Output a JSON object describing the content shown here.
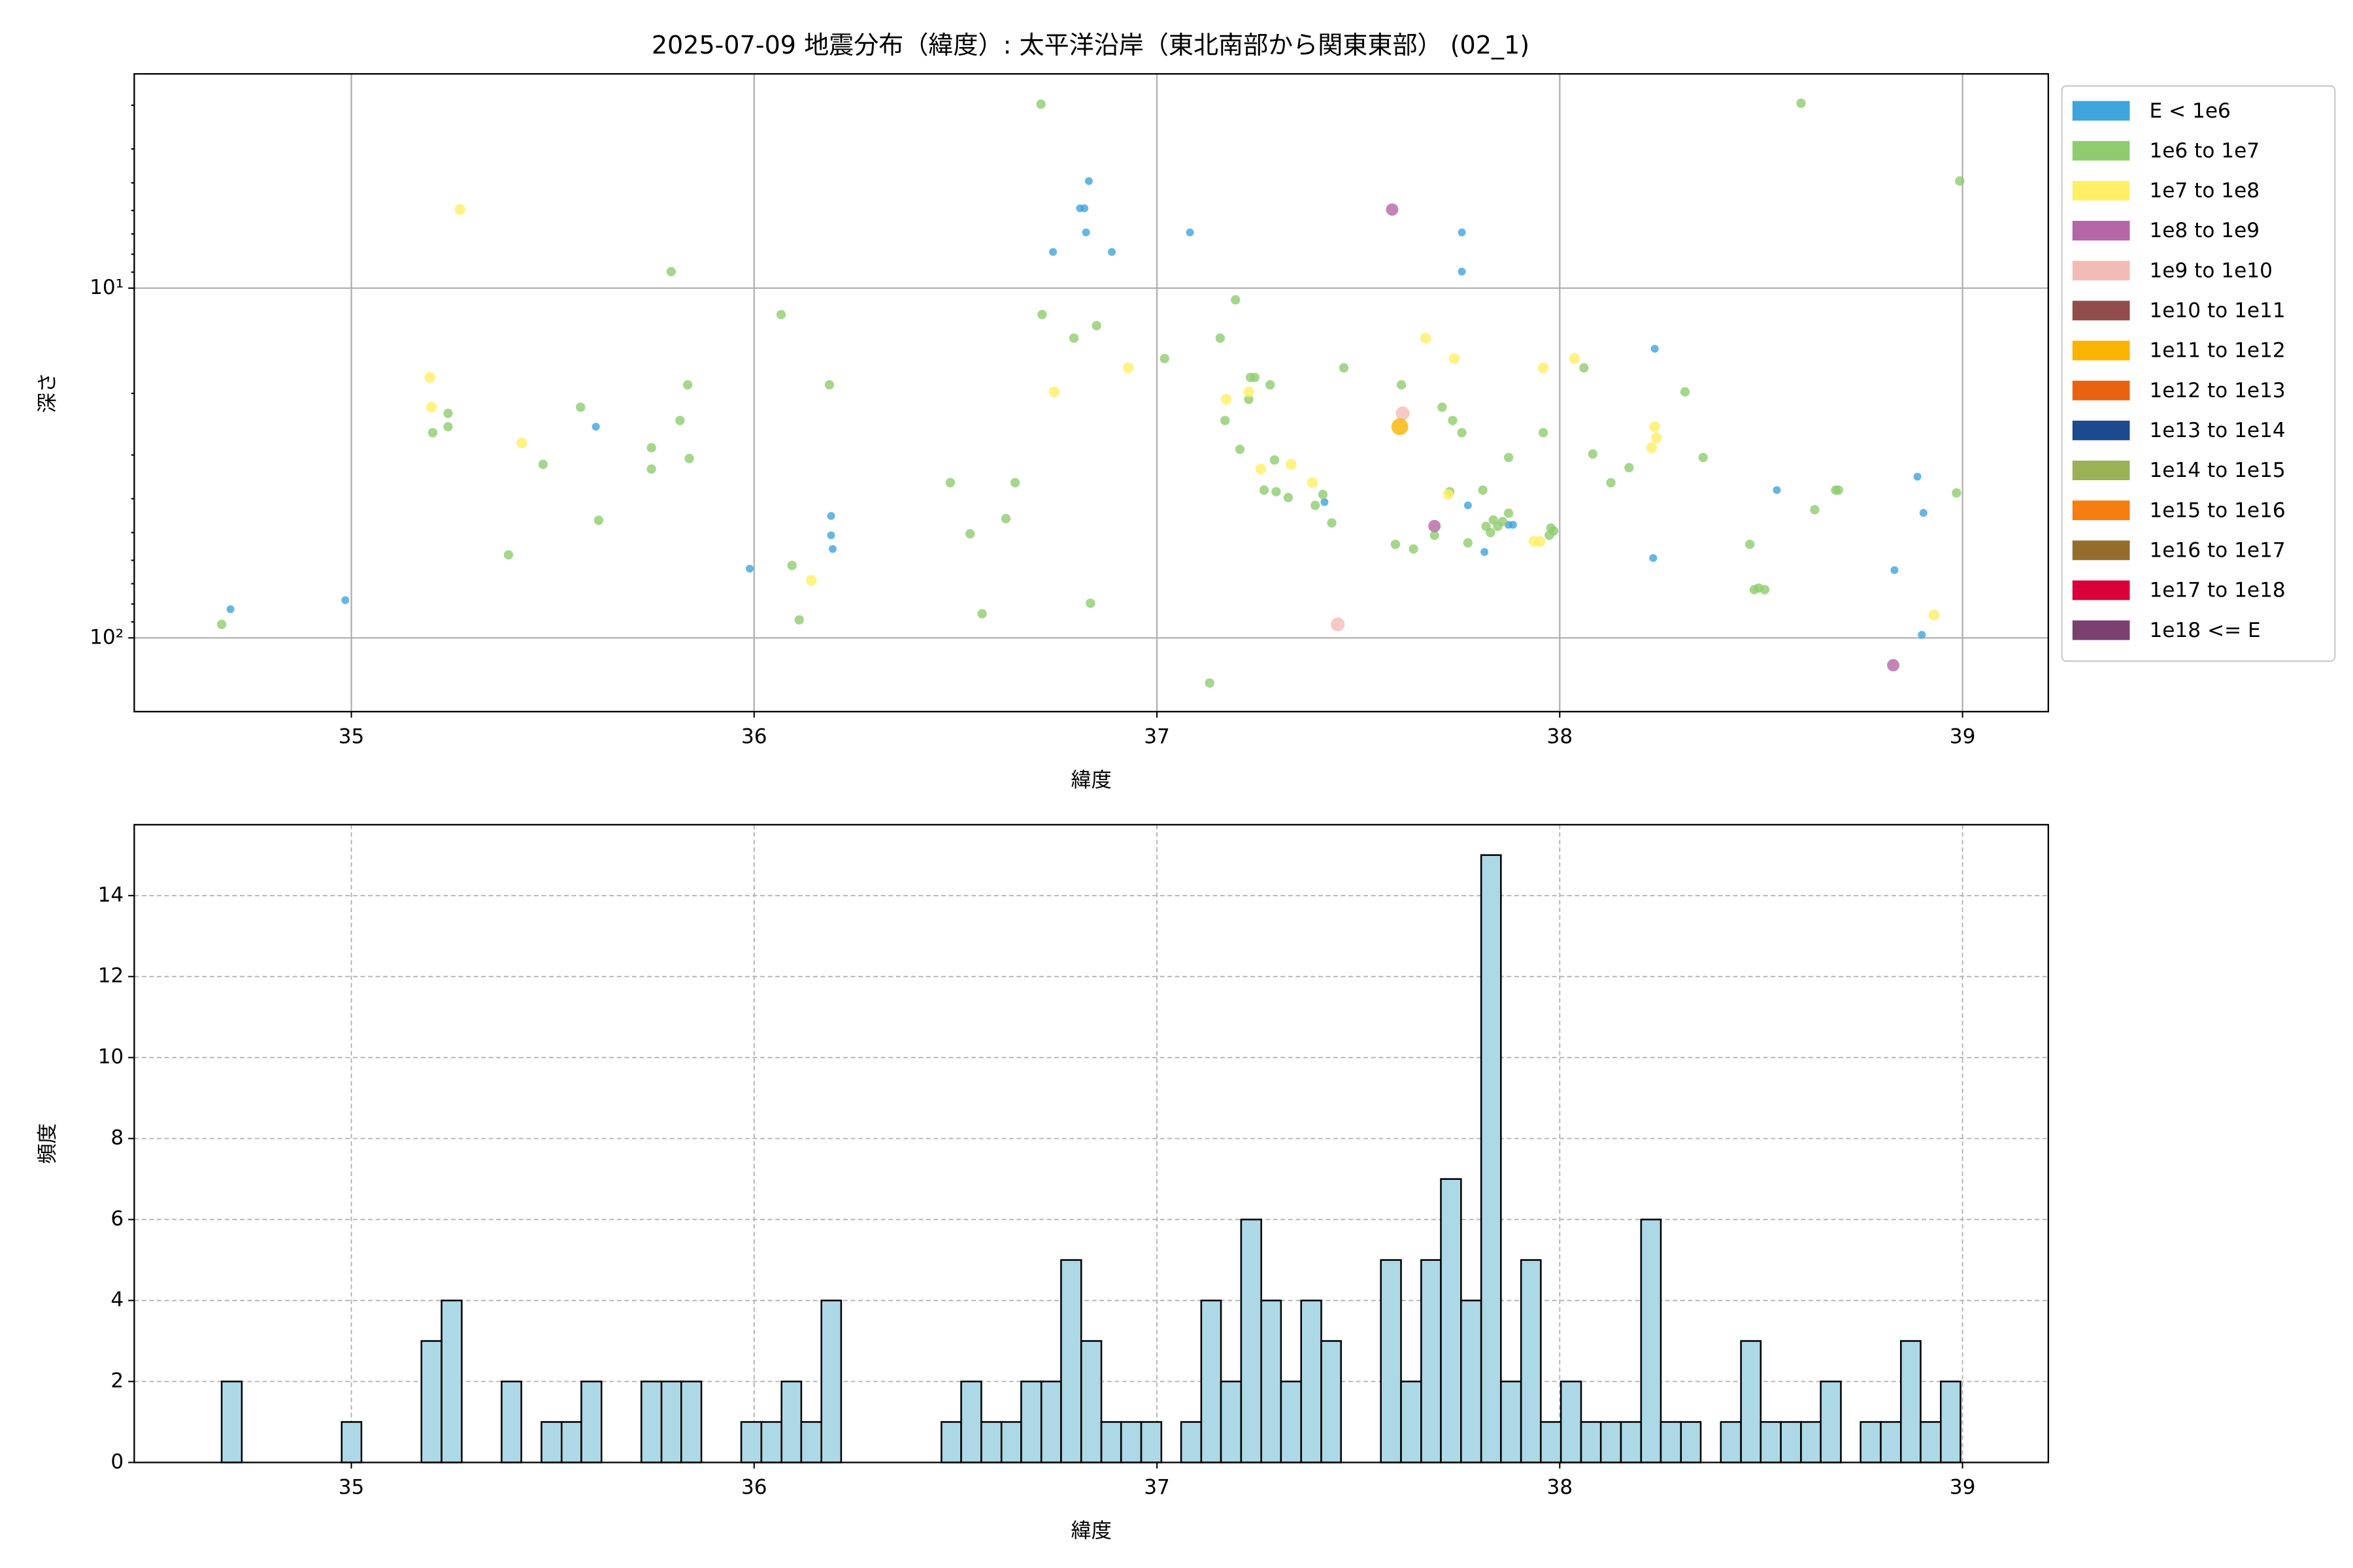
{
  "chart_data": [
    {
      "type": "scatter",
      "title": "2025-07-09 地震分布（緯度）: 太平洋沿岸（東北南部から関東東部） (02_1)",
      "xlabel": "緯度",
      "ylabel": "深さ",
      "xlim": [
        34.461,
        39.213
      ],
      "ylim": [
        2.44,
        162.5
      ],
      "y_log": true,
      "y_inverted": true,
      "xticks": [
        35,
        36,
        37,
        38,
        39
      ],
      "yticks": [
        {
          "value": 10,
          "label": "10¹"
        },
        {
          "value": 100,
          "label": "10²"
        }
      ],
      "yminor_ticks": [
        3,
        4,
        5,
        6,
        7,
        8,
        9,
        20,
        30,
        40,
        50,
        60,
        70,
        80,
        90
      ],
      "grid": true,
      "legend": "outside-right",
      "series": [
        {
          "name": "E < 1e6",
          "color": "#3fa4dc",
          "x": [
            34.7,
            34.985,
            35.607,
            35.989,
            36.191,
            36.191,
            36.195,
            36.742,
            36.809,
            36.82,
            36.824,
            36.831,
            36.888,
            37.082,
            37.757,
            37.757,
            37.416,
            37.772,
            37.813,
            37.873,
            37.884,
            38.236,
            38.232,
            38.539,
            38.831,
            38.888,
            38.903,
            38.899
          ],
          "values": [
            82.8,
            78.0,
            24.9,
            63.4,
            44.8,
            50.9,
            55.7,
            7.88,
            5.91,
            5.91,
            6.93,
            4.94,
            7.88,
            6.93,
            6.93,
            8.97,
            40.9,
            41.8,
            56.8,
            47.5,
            47.5,
            14.9,
            59.1,
            37.8,
            64.0,
            34.6,
            43.9,
            98.0
          ]
        },
        {
          "name": "1e6 to 1e7",
          "color": "#8fcc6f",
          "x": [
            34.678,
            35.24,
            35.24,
            35.202,
            35.39,
            35.476,
            35.569,
            35.614,
            35.745,
            35.745,
            35.794,
            35.816,
            35.835,
            35.839,
            36.067,
            36.094,
            36.112,
            36.187,
            36.487,
            36.536,
            36.566,
            36.625,
            36.648,
            36.712,
            36.715,
            36.794,
            36.85,
            36.835,
            37.019,
            37.157,
            37.169,
            37.195,
            37.206,
            37.228,
            37.232,
            37.243,
            37.266,
            37.281,
            37.292,
            37.296,
            37.326,
            37.412,
            37.393,
            37.434,
            37.464,
            37.131,
            37.592,
            37.607,
            37.637,
            37.689,
            37.708,
            37.734,
            37.757,
            37.727,
            37.772,
            37.809,
            37.817,
            37.828,
            37.835,
            37.846,
            37.858,
            37.873,
            37.873,
            37.959,
            37.974,
            37.978,
            37.985,
            38.06,
            38.082,
            38.127,
            38.172,
            38.311,
            38.356,
            38.472,
            38.483,
            38.494,
            38.509,
            38.633,
            38.685,
            38.692,
            38.599,
            38.993,
            38.985
          ],
          "values": [
            91.5,
            22.8,
            24.9,
            25.9,
            57.9,
            31.9,
            21.9,
            46.1,
            28.6,
            32.9,
            8.97,
            23.9,
            18.9,
            30.7,
            11.9,
            62.1,
            88.8,
            18.9,
            36.0,
            50.4,
            85.3,
            45.6,
            36.0,
            2.98,
            11.9,
            13.9,
            12.8,
            79.6,
            15.9,
            13.9,
            23.9,
            10.8,
            28.9,
            20.8,
            18.0,
            18.0,
            37.8,
            18.9,
            31.0,
            38.2,
            39.7,
            38.9,
            41.8,
            46.9,
            16.9,
            134.6,
            54.0,
            18.9,
            55.7,
            50.9,
            21.9,
            23.9,
            25.9,
            38.2,
            53.5,
            37.8,
            48.0,
            50.0,
            46.0,
            48.0,
            46.5,
            44.0,
            30.5,
            25.9,
            50.9,
            48.5,
            49.5,
            16.9,
            29.8,
            36.0,
            32.6,
            19.8,
            30.5,
            54.0,
            72.8,
            72.0,
            72.8,
            43.0,
            37.8,
            37.8,
            2.96,
            4.94,
            38.5
          ]
        },
        {
          "name": "1e7 to 1e8",
          "color": "#ffef66",
          "x": [
            35.27,
            35.195,
            35.199,
            35.423,
            36.142,
            36.745,
            36.929,
            37.172,
            37.228,
            37.258,
            37.333,
            37.386,
            37.667,
            37.738,
            37.723,
            37.936,
            37.951,
            37.959,
            38.037,
            38.236,
            38.24,
            38.228,
            38.929
          ],
          "values": [
            5.96,
            18.0,
            21.9,
            27.7,
            68.5,
            19.8,
            16.9,
            20.8,
            19.8,
            32.9,
            31.9,
            36.0,
            13.9,
            15.9,
            38.9,
            53.0,
            53.0,
            16.9,
            15.9,
            24.9,
            26.8,
            28.6,
            86.0
          ]
        },
        {
          "name": "1e8 to 1e9",
          "color": "#b466a6",
          "x": [
            37.584,
            37.689,
            38.828
          ],
          "values": [
            5.96,
            47.9,
            119.7
          ]
        },
        {
          "name": "1e9 to 1e10",
          "color": "#f3bbb5",
          "x": [
            37.61,
            37.449
          ],
          "values": [
            22.8,
            91.5
          ]
        },
        {
          "name": "1e10 to 1e11",
          "color": "#924c4a",
          "x": [],
          "values": []
        },
        {
          "name": "1e11 to 1e12",
          "color": "#f8b400",
          "x": [
            37.603
          ],
          "values": [
            24.9
          ]
        },
        {
          "name": "1e12 to 1e13",
          "color": "#e8620f",
          "x": [],
          "values": []
        },
        {
          "name": "1e13 to 1e14",
          "color": "#1c4a8e",
          "x": [],
          "values": []
        },
        {
          "name": "1e14 to 1e15",
          "color": "#9bb156",
          "x": [],
          "values": []
        },
        {
          "name": "1e15 to 1e16",
          "color": "#f57d11",
          "x": [],
          "values": []
        },
        {
          "name": "1e16 to 1e17",
          "color": "#946d2d",
          "x": [],
          "values": []
        },
        {
          "name": "1e17 to 1e18",
          "color": "#d9003a",
          "x": [],
          "values": []
        },
        {
          "name": "1e18 <= E",
          "color": "#7b3f70",
          "x": [],
          "values": []
        }
      ]
    },
    {
      "type": "histogram",
      "xlabel": "緯度",
      "ylabel": "頻度",
      "xlim": [
        34.461,
        39.213
      ],
      "ylim": [
        0,
        15.75
      ],
      "xticks": [
        35,
        36,
        37,
        38,
        39
      ],
      "yticks": [
        0,
        2,
        4,
        6,
        8,
        10,
        12,
        14
      ],
      "grid": true,
      "color": "#add8e6",
      "edgecolor": "#000000",
      "bins": [
        34.678,
        34.728,
        34.777,
        34.827,
        34.877,
        34.926,
        34.976,
        35.025,
        35.075,
        35.125,
        35.174,
        35.224,
        35.274,
        35.323,
        35.373,
        35.422,
        35.472,
        35.522,
        35.571,
        35.621,
        35.671,
        35.72,
        35.77,
        35.819,
        35.869,
        35.919,
        35.968,
        36.018,
        36.068,
        36.117,
        36.167,
        36.216,
        36.266,
        36.316,
        36.365,
        36.415,
        36.465,
        36.514,
        36.564,
        36.614,
        36.663,
        36.713,
        36.762,
        36.812,
        36.862,
        36.911,
        36.961,
        37.011,
        37.06,
        37.11,
        37.159,
        37.209,
        37.259,
        37.308,
        37.358,
        37.408,
        37.457,
        37.507,
        37.556,
        37.606,
        37.656,
        37.705,
        37.755,
        37.805,
        37.854,
        37.904,
        37.953,
        38.003,
        38.053,
        38.102,
        38.152,
        38.202,
        38.251,
        38.301,
        38.35,
        38.4,
        38.45,
        38.499,
        38.549,
        38.599,
        38.648,
        38.698,
        38.747,
        38.797,
        38.847,
        38.896,
        38.946,
        38.995
      ],
      "counts": [
        2,
        0,
        0,
        0,
        0,
        0,
        1,
        0,
        0,
        0,
        3,
        4,
        0,
        0,
        2,
        0,
        1,
        1,
        2,
        0,
        0,
        2,
        2,
        2,
        0,
        0,
        1,
        1,
        2,
        1,
        4,
        0,
        0,
        0,
        0,
        0,
        1,
        2,
        1,
        1,
        2,
        2,
        5,
        3,
        1,
        1,
        1,
        0,
        1,
        4,
        2,
        6,
        4,
        2,
        4,
        3,
        0,
        0,
        5,
        2,
        5,
        7,
        4,
        15,
        2,
        5,
        1,
        2,
        1,
        1,
        1,
        6,
        1,
        1,
        0,
        1,
        3,
        1,
        1,
        1,
        2,
        0,
        1,
        1,
        3,
        1,
        2
      ]
    }
  ]
}
